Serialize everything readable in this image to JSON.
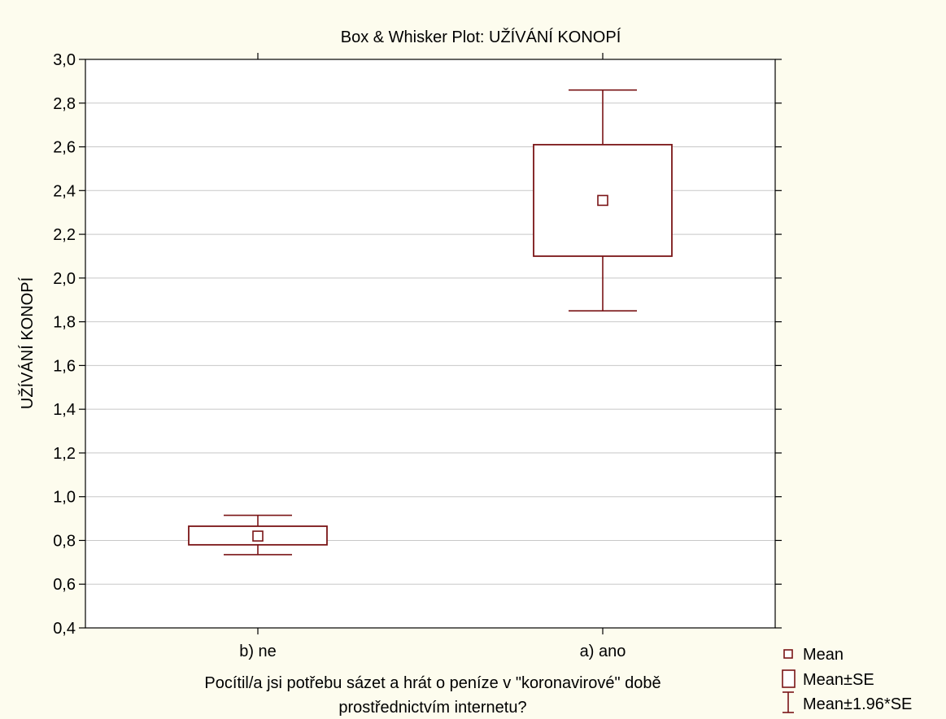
{
  "chart_data": {
    "type": "box",
    "title": "Box & Whisker Plot: UŽÍVÁNÍ KONOPÍ",
    "ylabel": "UŽÍVÁNÍ KONOPÍ",
    "xlabel_lines": [
      "Pocítil/a jsi potřebu sázet a hrát o peníze v \"koronavirové\" době",
      "prostřednictvím internetu?"
    ],
    "ylim": [
      0.4,
      3.0
    ],
    "yticks": [
      0.4,
      0.6,
      0.8,
      1.0,
      1.2,
      1.4,
      1.6,
      1.8,
      2.0,
      2.2,
      2.4,
      2.6,
      2.8,
      3.0
    ],
    "ytick_labels": [
      "0,4",
      "0,6",
      "0,8",
      "1,0",
      "1,2",
      "1,4",
      "1,6",
      "1,8",
      "2,0",
      "2,2",
      "2,4",
      "2,6",
      "2,8",
      "3,0"
    ],
    "grid": true,
    "categories": [
      "b) ne",
      "a) ano"
    ],
    "series": [
      {
        "category": "b) ne",
        "mean": 0.82,
        "se_low": 0.78,
        "se_high": 0.865,
        "ci_low": 0.735,
        "ci_high": 0.915
      },
      {
        "category": "a) ano",
        "mean": 2.355,
        "se_low": 2.1,
        "se_high": 2.61,
        "ci_low": 1.85,
        "ci_high": 2.86
      }
    ],
    "legend": {
      "position": "bottom-right",
      "items": [
        "Mean",
        "Mean±SE",
        "Mean±1.96*SE"
      ]
    },
    "colors": {
      "background": "#fdfcee",
      "plot_background": "#ffffff",
      "series": "#7a1416",
      "grid": "#c8c8c8",
      "axis": "#000000"
    }
  }
}
